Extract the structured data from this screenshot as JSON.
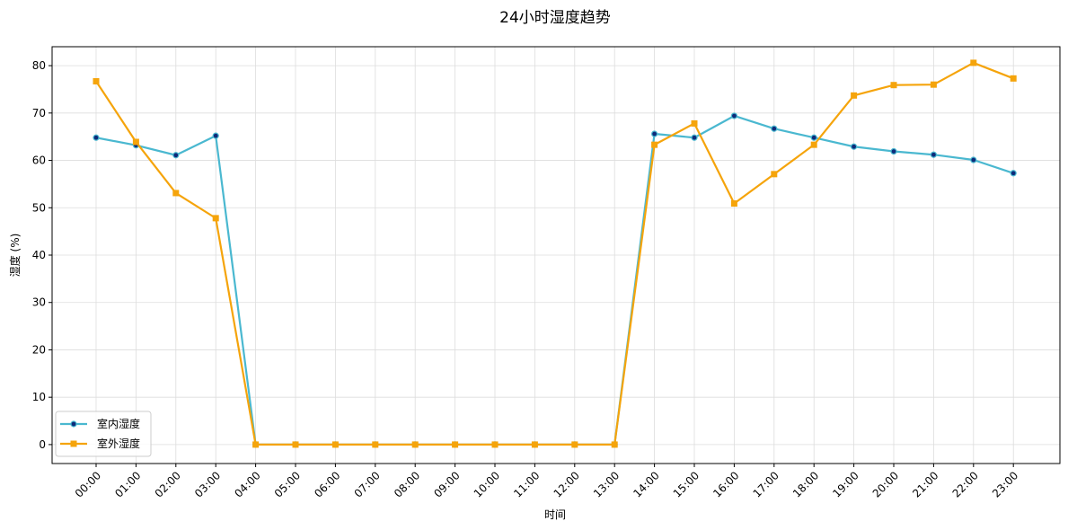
{
  "chart_data": {
    "type": "line",
    "title": "24小时湿度趋势",
    "xlabel": "时间",
    "ylabel": "湿度 (%)",
    "ylim": [
      -4,
      84
    ],
    "yticks": [
      0,
      10,
      20,
      30,
      40,
      50,
      60,
      70,
      80
    ],
    "grid": true,
    "legend_position": "lower-left",
    "categories": [
      "00:00",
      "01:00",
      "02:00",
      "03:00",
      "04:00",
      "05:00",
      "06:00",
      "07:00",
      "08:00",
      "09:00",
      "10:00",
      "11:00",
      "12:00",
      "13:00",
      "14:00",
      "15:00",
      "16:00",
      "17:00",
      "18:00",
      "19:00",
      "20:00",
      "21:00",
      "22:00",
      "23:00"
    ],
    "series": [
      {
        "name": "室内湿度",
        "color": "#4ab8d0",
        "marker": "circle",
        "marker_fill": "#0d2a7a",
        "values": [
          64.8,
          63.2,
          61.1,
          65.2,
          0,
          0,
          0,
          0,
          0,
          0,
          0,
          0,
          0,
          0,
          65.6,
          64.8,
          69.4,
          66.7,
          64.8,
          62.9,
          61.9,
          61.2,
          60.1,
          57.3
        ]
      },
      {
        "name": "室外湿度",
        "color": "#f5a40b",
        "marker": "square",
        "marker_fill": "#f5a40b",
        "values": [
          76.7,
          63.9,
          53.1,
          47.8,
          0,
          0,
          0,
          0,
          0,
          0,
          0,
          0,
          0,
          0,
          63.3,
          67.8,
          50.9,
          57.1,
          63.3,
          73.7,
          75.9,
          76.0,
          80.6,
          77.3
        ]
      }
    ]
  }
}
